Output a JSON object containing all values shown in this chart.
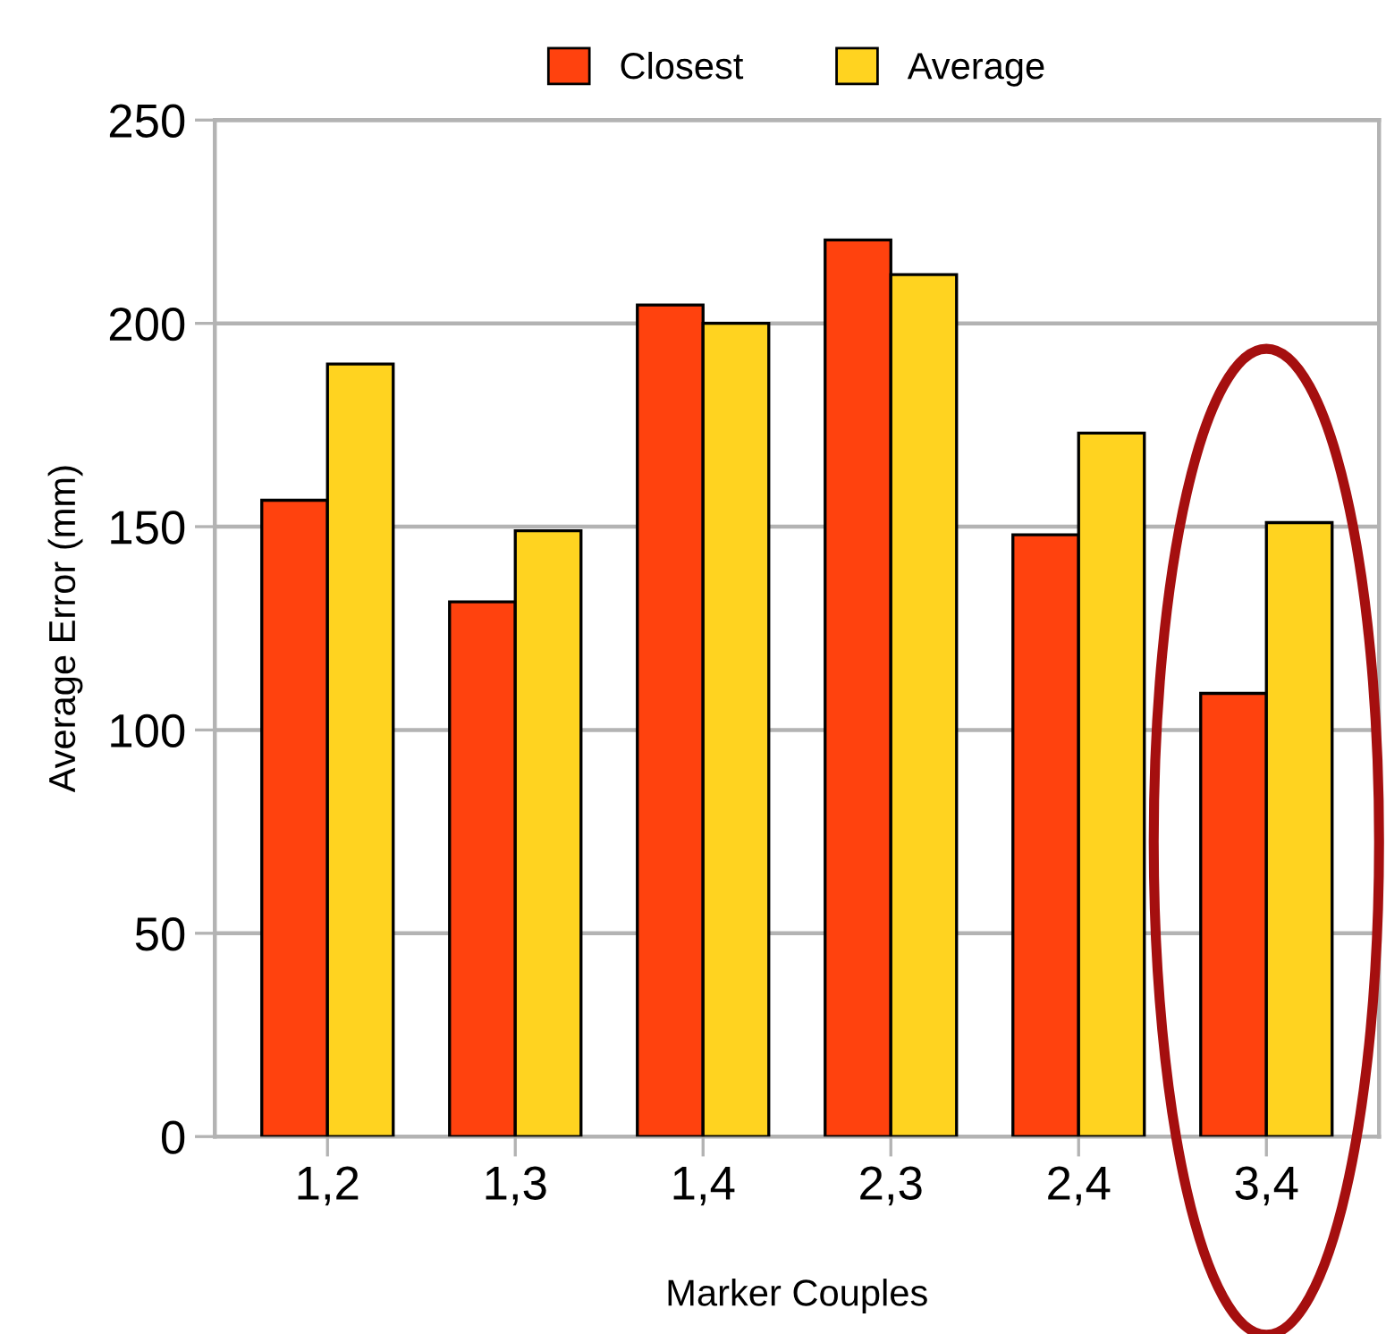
{
  "chart_data": {
    "type": "bar",
    "xlabel": "Marker Couples",
    "ylabel": "Average Error (mm)",
    "categories": [
      "1,2",
      "1,3",
      "1,4",
      "2,3",
      "2,4",
      "3,4"
    ],
    "series": [
      {
        "name": "Closest",
        "color": "#ff420e",
        "values": [
          156.5,
          131.5,
          204.5,
          220.5,
          148,
          109
        ]
      },
      {
        "name": "Average",
        "color": "#ffd320",
        "values": [
          190,
          149,
          200,
          212,
          173,
          151
        ]
      }
    ],
    "ylim": [
      0,
      250
    ],
    "yticks": [
      0,
      50,
      100,
      150,
      200,
      250
    ],
    "grid": "y",
    "legend": "top"
  }
}
